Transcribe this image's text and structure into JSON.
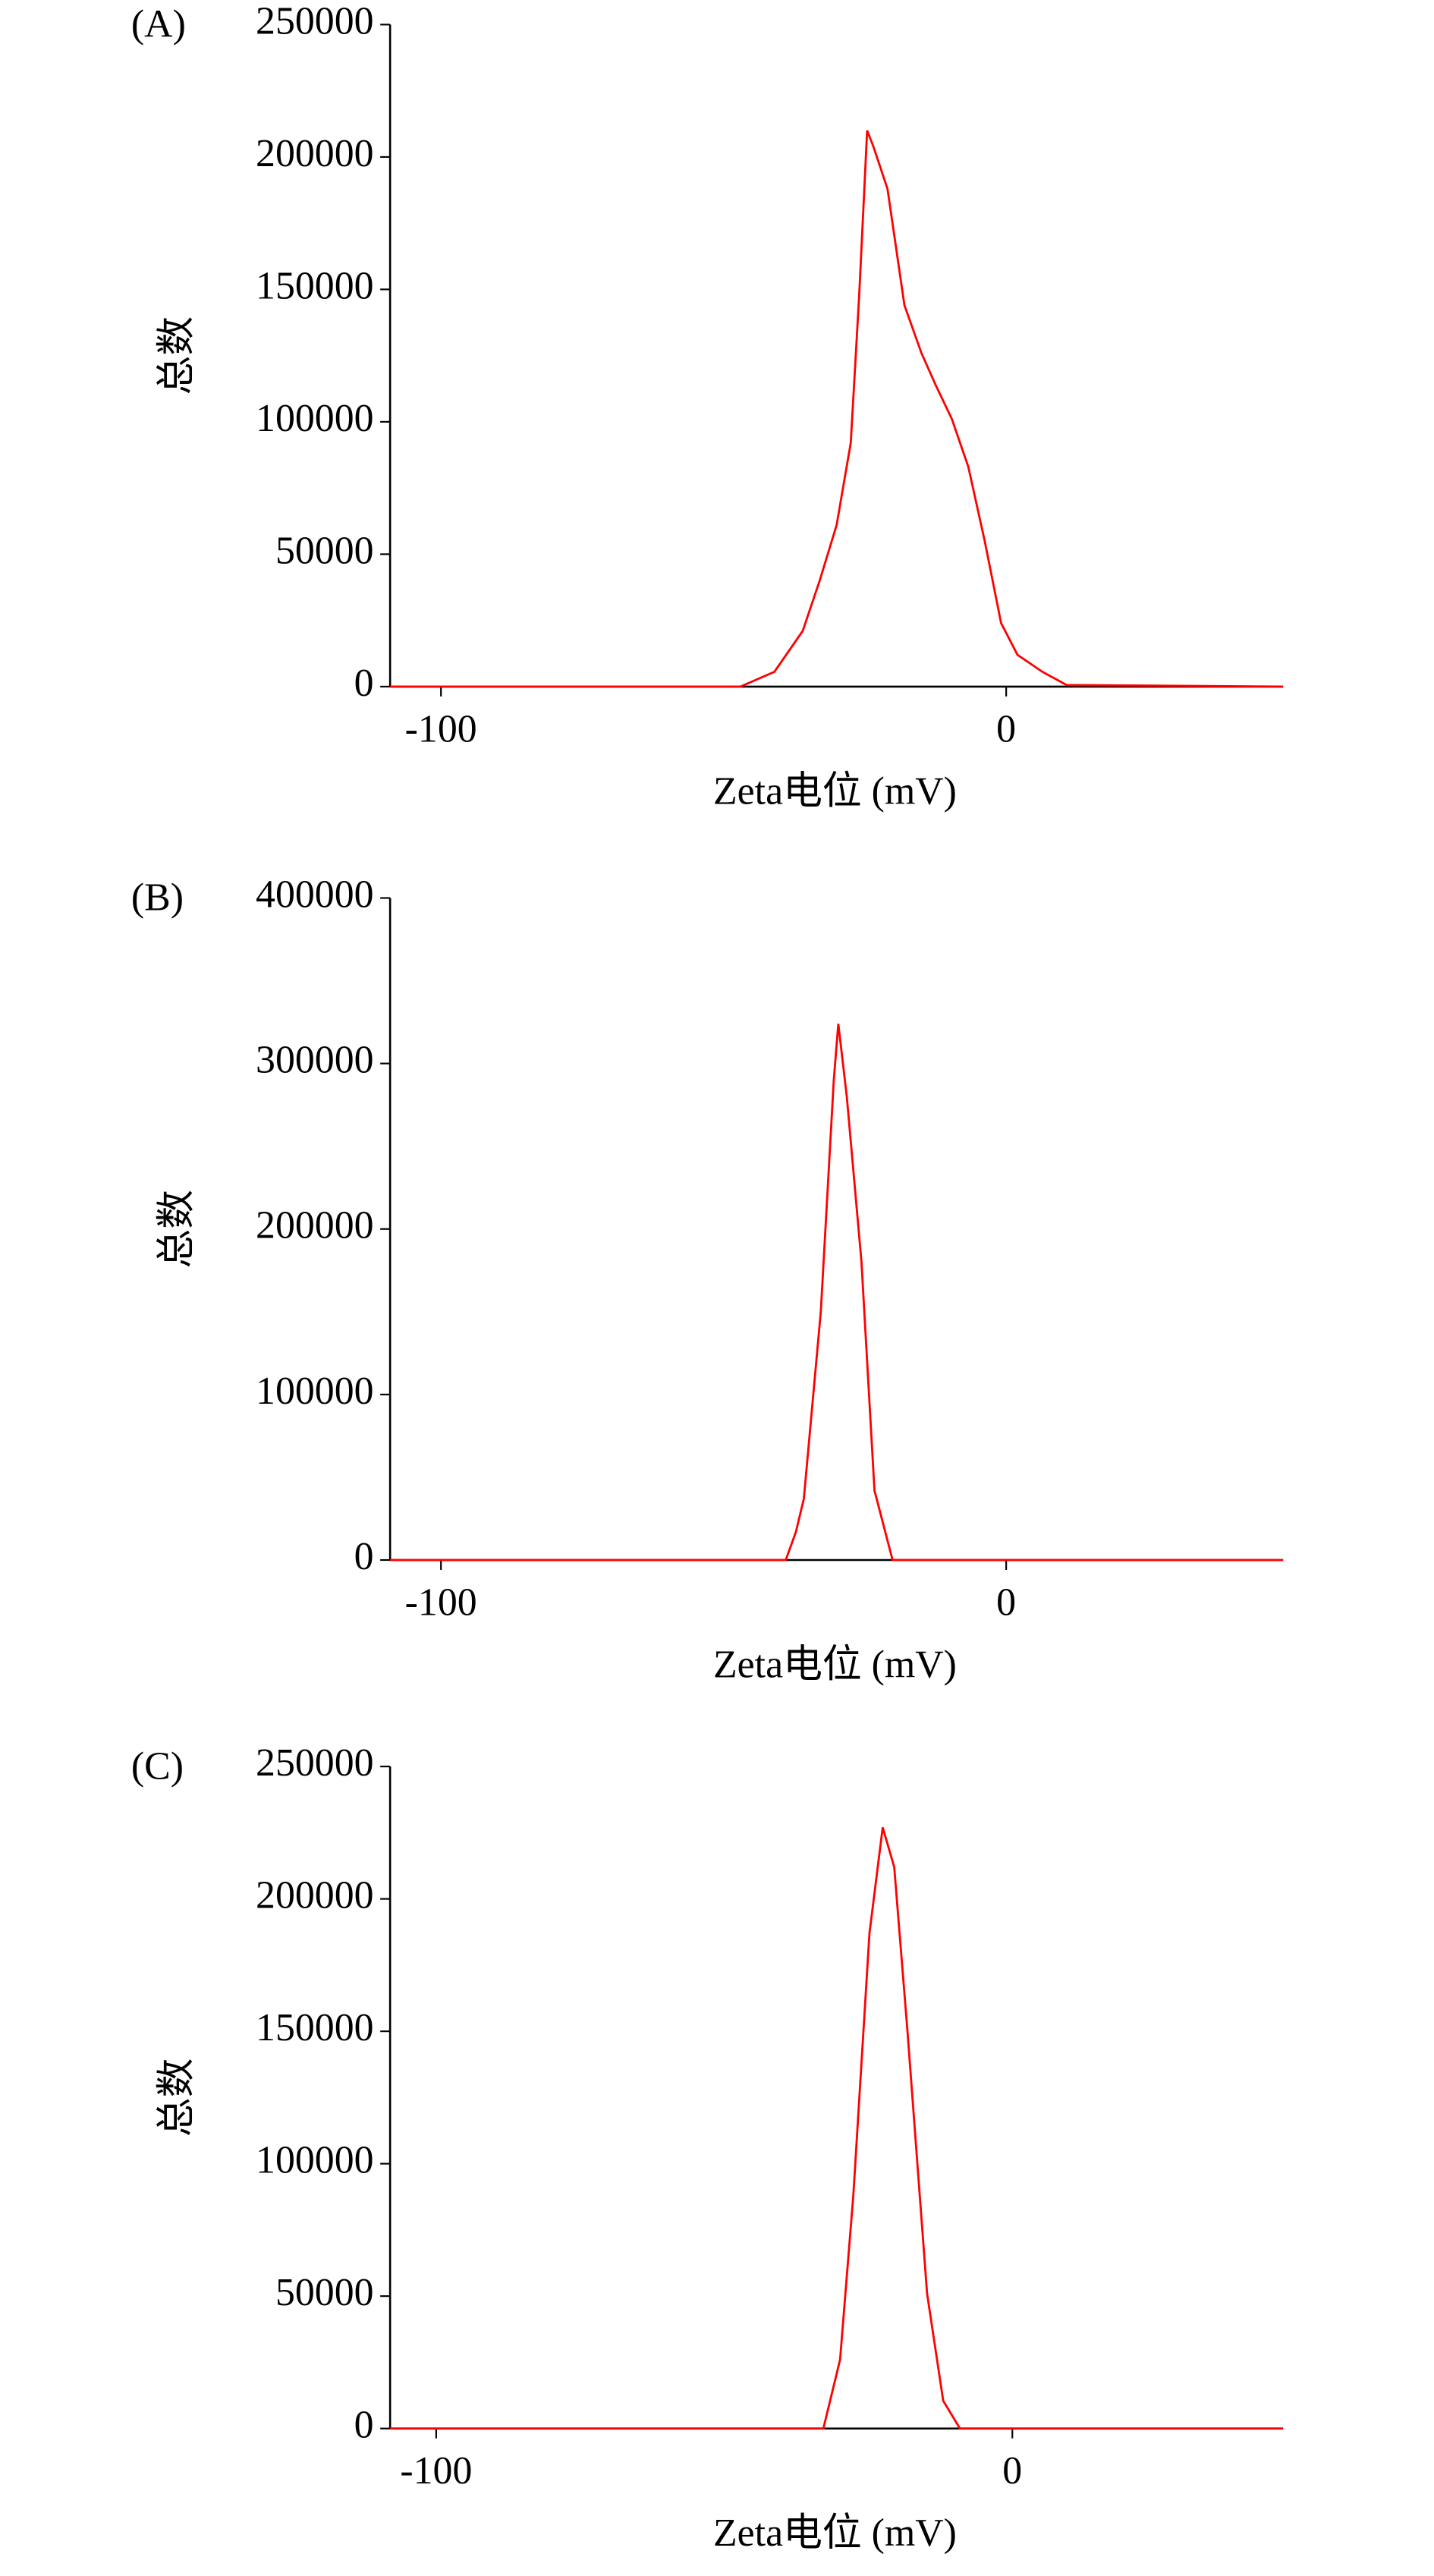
{
  "chart_data": [
    {
      "type": "line",
      "panel_label": "(A)",
      "y_label": "总数",
      "x_label": "Zeta电位 (mV)",
      "xlim": [
        -109,
        49
      ],
      "xticks": [
        -100,
        0
      ],
      "ylim": [
        0,
        250000
      ],
      "yticks": [
        0,
        50000,
        100000,
        150000,
        200000,
        250000
      ],
      "series": [
        {
          "color": "#ff0000",
          "x": [
            -109,
            -47,
            -41,
            -36,
            -33,
            -30,
            -27.5,
            -26,
            -24.6,
            -23.5,
            -21,
            -18,
            -15,
            -12.5,
            -9.6,
            -6.7,
            -3.8,
            -0.9,
            2,
            6.4,
            10.7,
            49
          ],
          "values": [
            0,
            0,
            5600,
            21000,
            40000,
            61000,
            92000,
            148000,
            210000,
            204000,
            188000,
            144000,
            126000,
            114000,
            101000,
            83000,
            55000,
            24000,
            12000,
            5600,
            600,
            0
          ]
        }
      ]
    },
    {
      "type": "line",
      "panel_label": "(B)",
      "y_label": "总数",
      "x_label": "Zeta电位 (mV)",
      "xlim": [
        -109,
        49
      ],
      "xticks": [
        -100,
        0
      ],
      "ylim": [
        0,
        400000
      ],
      "yticks": [
        0,
        100000,
        200000,
        300000,
        400000
      ],
      "series": [
        {
          "color": "#ff0000",
          "x": [
            -109,
            -39,
            -37.2,
            -35.8,
            -32.8,
            -30.5,
            -29.7,
            -28.2,
            -25.6,
            -23.3,
            -20.1,
            49
          ],
          "values": [
            0,
            0,
            17000,
            37000,
            150000,
            290000,
            324000,
            280000,
            180000,
            42000,
            0,
            0
          ]
        }
      ]
    },
    {
      "type": "line",
      "panel_label": "(C)",
      "y_label": "总数",
      "x_label": "Zeta电位 (mV)",
      "xlim": [
        -108,
        47
      ],
      "xticks": [
        -100,
        0
      ],
      "ylim": [
        0,
        250000
      ],
      "yticks": [
        0,
        50000,
        100000,
        150000,
        200000,
        250000
      ],
      "series": [
        {
          "color": "#ff0000",
          "x": [
            -108,
            -32.8,
            -29.9,
            -27.6,
            -24.8,
            -22.5,
            -20.5,
            -18.2,
            -14.8,
            -12,
            -9.1,
            47
          ],
          "values": [
            0,
            0,
            26000,
            88000,
            187000,
            227000,
            212000,
            150000,
            51000,
            10500,
            0,
            0
          ]
        }
      ]
    }
  ]
}
